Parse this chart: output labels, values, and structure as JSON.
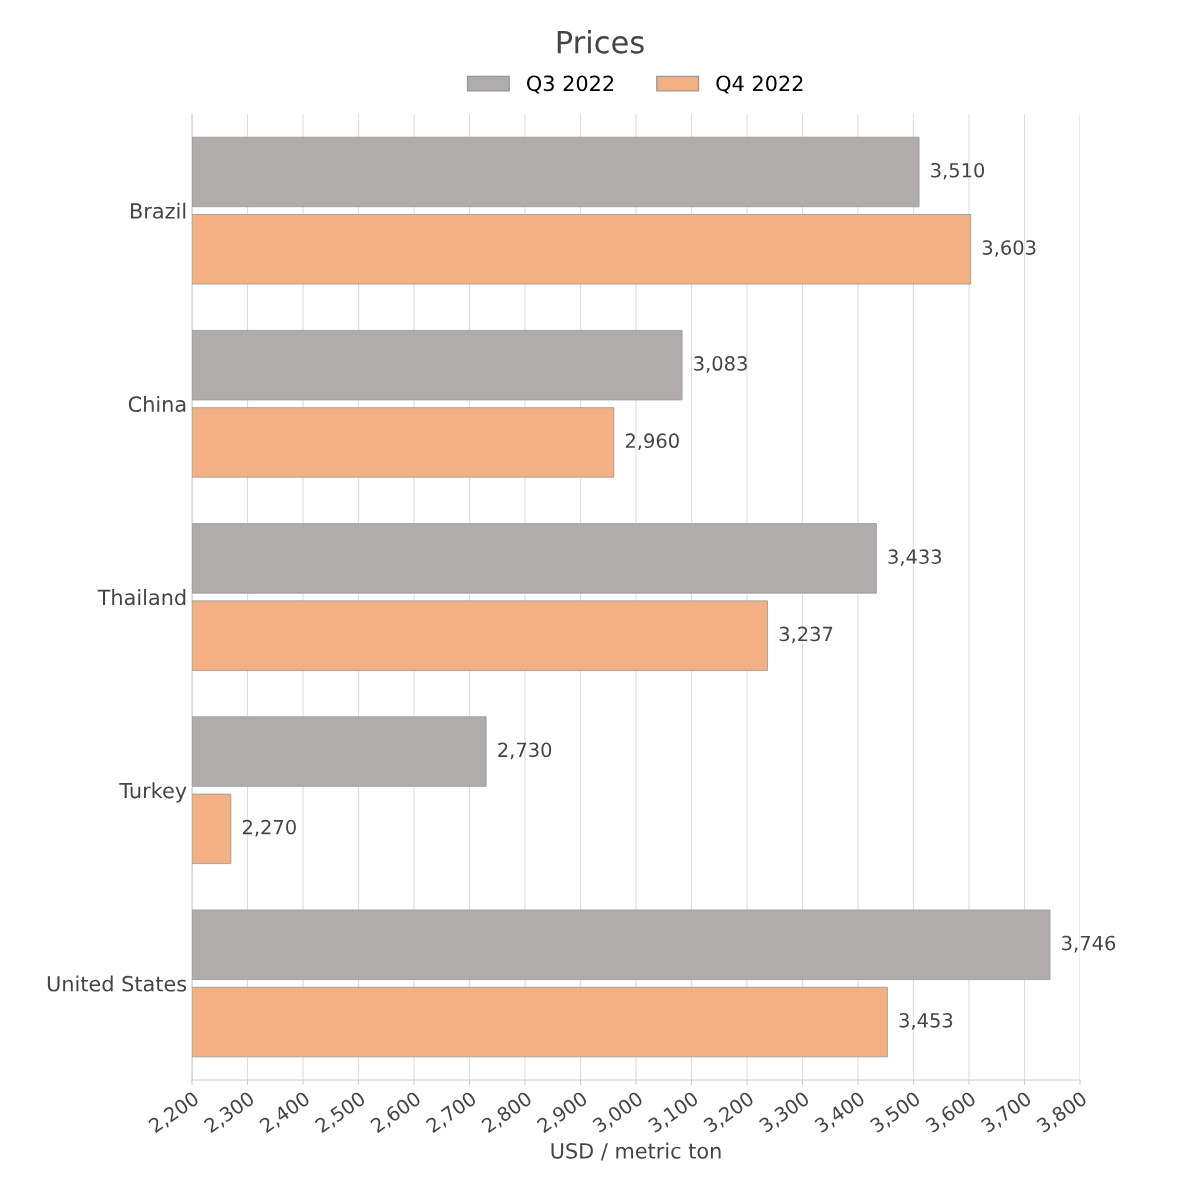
{
  "chart_data": {
    "type": "bar",
    "orientation": "horizontal",
    "title": "Prices",
    "xlabel": "USD / metric ton",
    "categories": [
      "Brazil",
      "China",
      "Thailand",
      "Turkey",
      "United States"
    ],
    "series": [
      {
        "name": "Q3 2022",
        "color": "#b0acab",
        "values": [
          3510,
          3083,
          3433,
          2730,
          3746
        ],
        "value_labels": [
          "3,510",
          "3,083",
          "3,433",
          "2,730",
          "3,746"
        ]
      },
      {
        "name": "Q4 2022",
        "color": "#f3b084",
        "values": [
          3603,
          2960,
          3237,
          2270,
          3453
        ],
        "value_labels": [
          "3,603",
          "2,960",
          "3,237",
          "2,270",
          "3,453"
        ]
      }
    ],
    "xlim": [
      2200,
      3800
    ],
    "xticks": [
      {
        "value": 2200,
        "label": "2,200"
      },
      {
        "value": 2300,
        "label": "2,300"
      },
      {
        "value": 2400,
        "label": "2,400"
      },
      {
        "value": 2500,
        "label": "2,500"
      },
      {
        "value": 2600,
        "label": "2,600"
      },
      {
        "value": 2700,
        "label": "2,700"
      },
      {
        "value": 2800,
        "label": "2,800"
      },
      {
        "value": 2900,
        "label": "2,900"
      },
      {
        "value": 3000,
        "label": "3,000"
      },
      {
        "value": 3100,
        "label": "3,100"
      },
      {
        "value": 3200,
        "label": "3,200"
      },
      {
        "value": 3300,
        "label": "3,300"
      },
      {
        "value": 3400,
        "label": "3,400"
      },
      {
        "value": 3500,
        "label": "3,500"
      },
      {
        "value": 3600,
        "label": "3,600"
      },
      {
        "value": 3700,
        "label": "3,700"
      },
      {
        "value": 3800,
        "label": "3,800"
      }
    ],
    "grid": "x",
    "legend": "top"
  }
}
